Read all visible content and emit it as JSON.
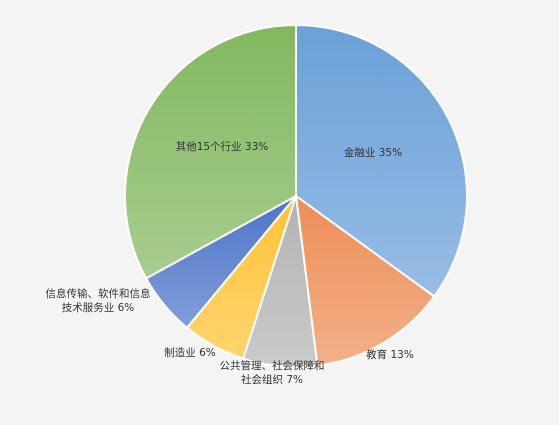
{
  "chart_data": {
    "type": "pie",
    "title": "",
    "slices": [
      {
        "label_lines": [
          "金融业 35%"
        ],
        "value": 35,
        "color": "#6aa0d8"
      },
      {
        "label_lines": [
          "教育 13%"
        ],
        "value": 13,
        "color": "#ee8e57"
      },
      {
        "label_lines": [
          "公共管理、社会保障和",
          "社会组织 7%"
        ],
        "value": 7,
        "color": "#b3b3b3"
      },
      {
        "label_lines": [
          "制造业 6%"
        ],
        "value": 6,
        "color": "#ffc233"
      },
      {
        "label_lines": [
          "信息传输、软件和信息",
          "技术服务业 6%"
        ],
        "value": 6,
        "color": "#4d74c8"
      },
      {
        "label_lines": [
          "其他15个行业 33%"
        ],
        "value": 33,
        "color": "#82b85f"
      }
    ],
    "legend": "none"
  }
}
